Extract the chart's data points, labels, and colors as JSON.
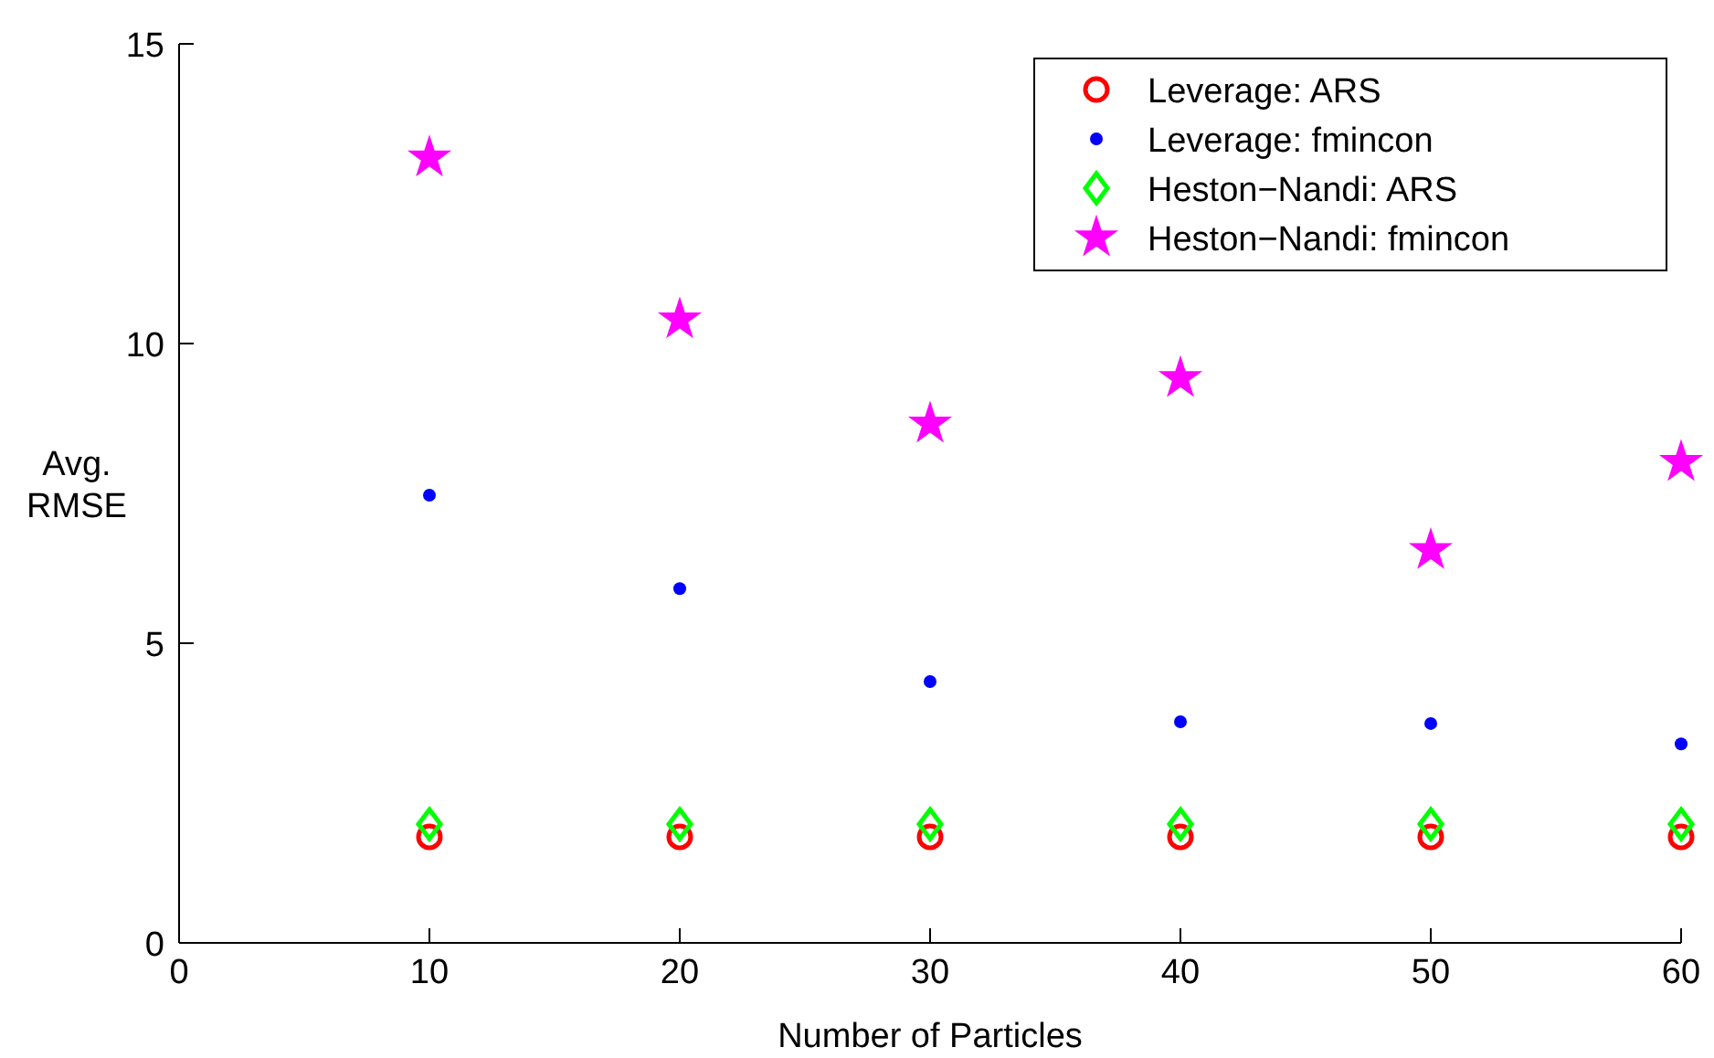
{
  "chart_data": {
    "type": "scatter",
    "xlabel": "Number of Particles",
    "ylabel": "Avg. RMSE",
    "x": [
      10,
      20,
      30,
      40,
      50,
      60
    ],
    "xlim": [
      0,
      60
    ],
    "xticks": [
      0,
      10,
      20,
      30,
      40,
      50,
      60
    ],
    "ylim": [
      0,
      15
    ],
    "yticks": [
      0,
      5,
      10,
      15
    ],
    "grid": false,
    "legend": "top right",
    "series": [
      {
        "name": "Leverage: ARS",
        "color": "#ff0000",
        "marker": "circle",
        "values": [
          1.77,
          1.77,
          1.77,
          1.77,
          1.77,
          1.77
        ]
      },
      {
        "name": "Leverage: fmincon",
        "color": "#0000ff",
        "marker": "point",
        "values": [
          7.47,
          5.91,
          4.36,
          3.69,
          3.66,
          3.32
        ]
      },
      {
        "name": "Heston−Nandi: ARS",
        "color": "#00ff00",
        "marker": "diamond",
        "values": [
          1.98,
          1.98,
          1.98,
          1.98,
          1.98,
          1.98
        ]
      },
      {
        "name": "Heston−Nandi: fmincon",
        "color": "#ff00ff",
        "marker": "star",
        "values": [
          13.1,
          10.4,
          8.66,
          9.42,
          6.55,
          8.02
        ]
      }
    ]
  }
}
